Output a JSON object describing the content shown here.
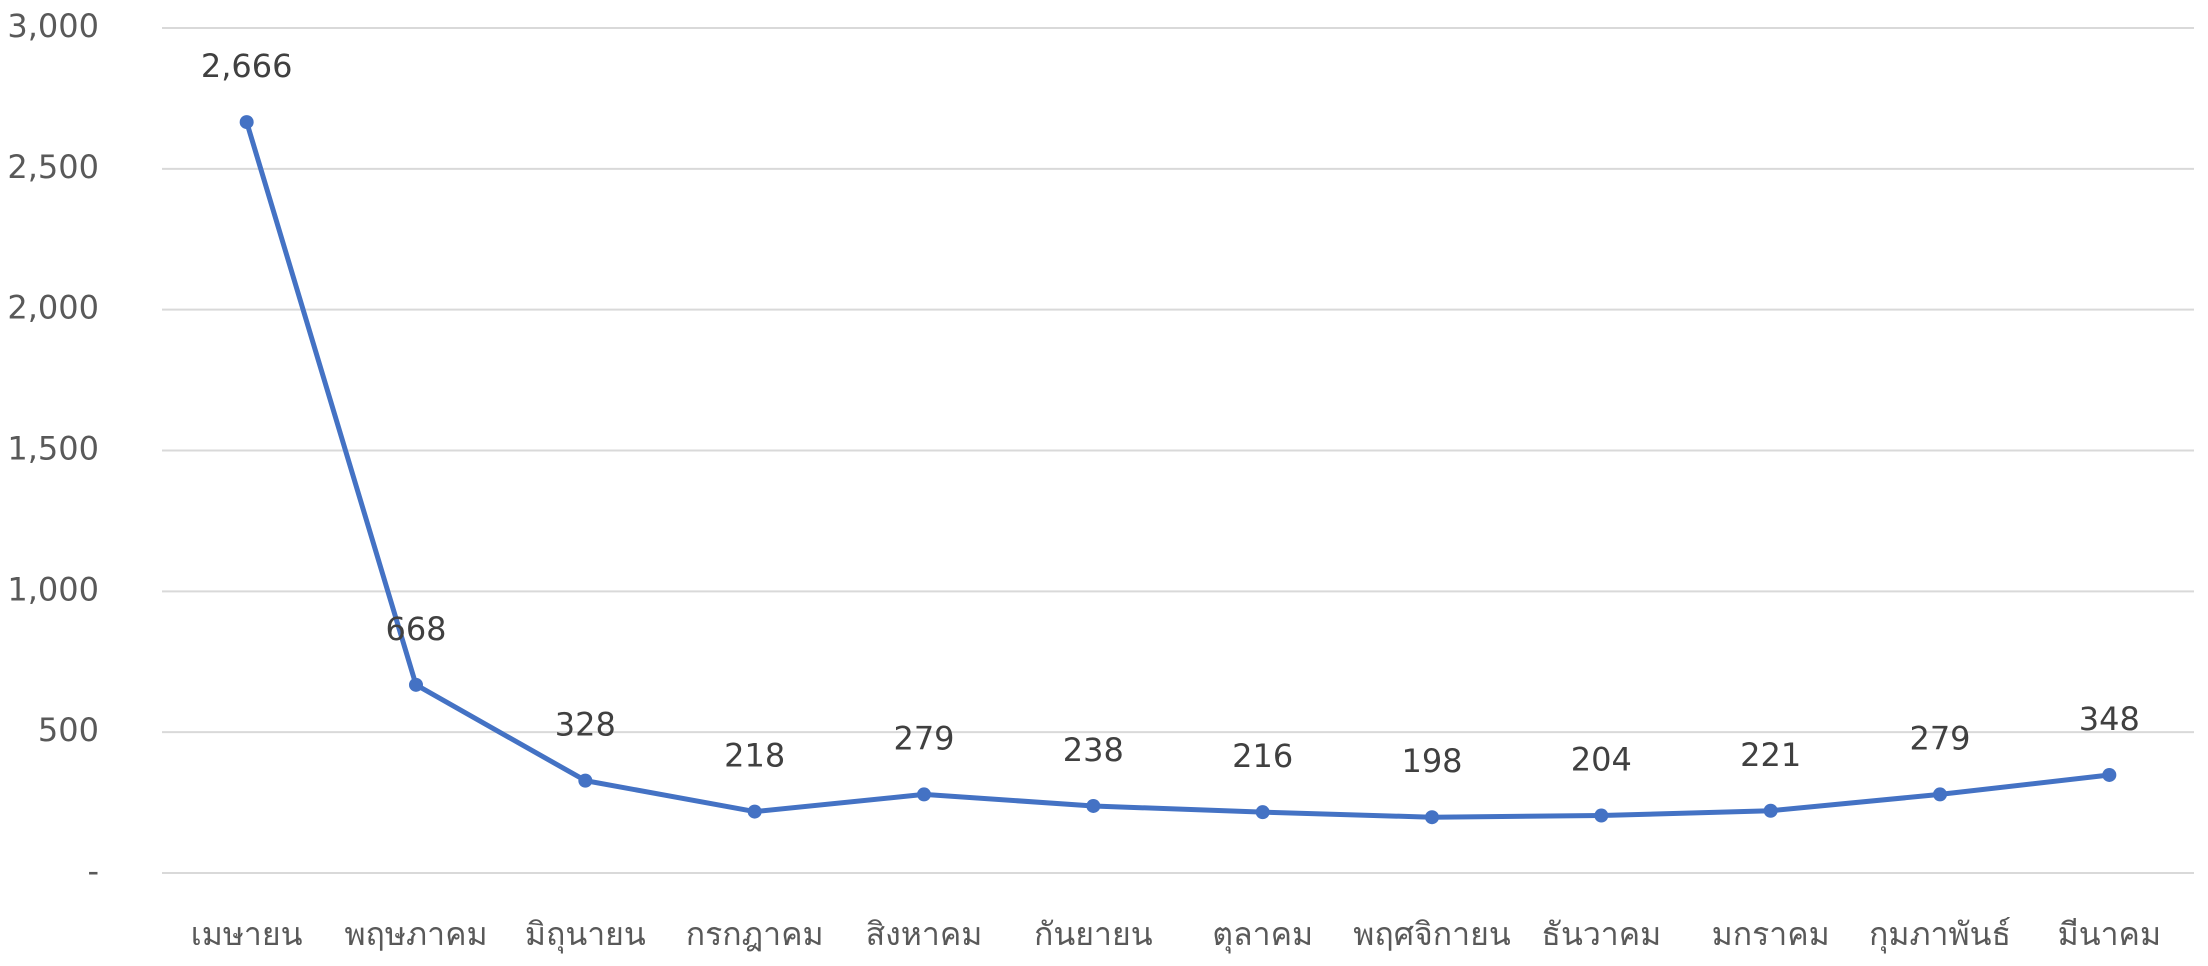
{
  "chart_data": {
    "type": "line",
    "categories": [
      "เมษายน",
      "พฤษภาคม",
      "มิถุนายน",
      "กรกฎาคม",
      "สิงหาคม",
      "กันยายน",
      "ตุลาคม",
      "พฤศจิกายน",
      "ธันวาคม",
      "มกราคม",
      "กุมภาพันธ์",
      "มีนาคม"
    ],
    "series": [
      {
        "color": "#4472c4",
        "values": [
          2666,
          668,
          328,
          218,
          279,
          238,
          216,
          198,
          204,
          221,
          279,
          348
        ],
        "value_labels": [
          "2,666",
          "668",
          "328",
          "218",
          "279",
          "238",
          "216",
          "198",
          "204",
          "221",
          "279",
          "348"
        ]
      }
    ],
    "ylim": [
      0,
      3000
    ],
    "yticks": [
      {
        "value": 0,
        "label": "-"
      },
      500,
      {
        "value": 1000,
        "label": "1,000"
      },
      {
        "value": 1500,
        "label": "1,500"
      },
      {
        "value": 2000,
        "label": "2,000"
      },
      {
        "value": 2500,
        "label": "2,500"
      },
      {
        "value": 3000,
        "label": "3,000"
      }
    ],
    "grid": true
  }
}
